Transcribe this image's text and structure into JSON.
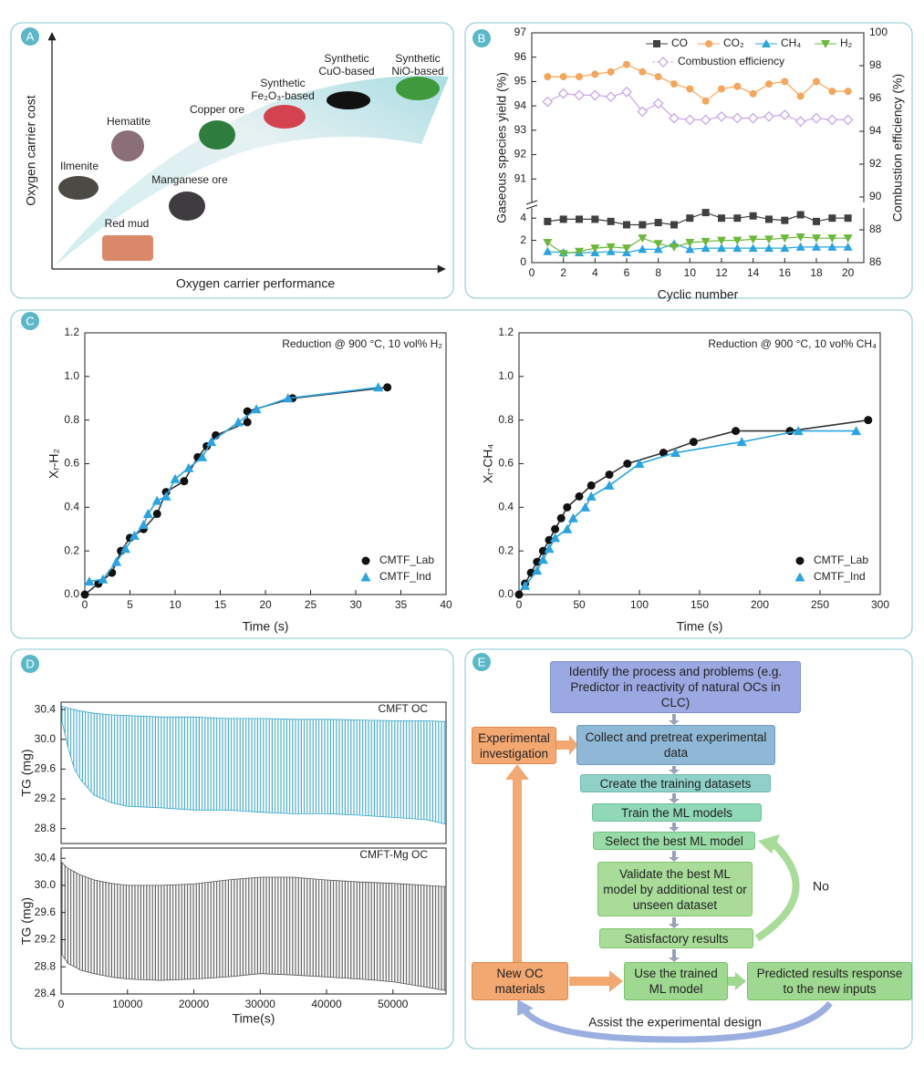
{
  "panel_labels": [
    "A",
    "B",
    "C",
    "D",
    "E"
  ],
  "panel_a": {
    "y_label": "Oxygen carrier cost",
    "x_label": "Oxygen carrier performance",
    "items": [
      [
        "Ilmenite"
      ],
      [
        "Hematite"
      ],
      [
        "Red mud"
      ],
      [
        "Manganese ore"
      ],
      [
        "Copper ore"
      ],
      [
        "Synthetic",
        "Fe₂O₃-based"
      ],
      [
        "Synthetic",
        "CuO-based"
      ],
      [
        "Synthetic",
        "NiO-based"
      ]
    ]
  },
  "chart_data": [
    {
      "type": "line",
      "xlabel": "Cyclic number",
      "ylabel": "Gaseous species yield (%)",
      "y2label": "Combustion efficiency (%)",
      "x": [
        1,
        2,
        3,
        4,
        5,
        6,
        7,
        8,
        9,
        10,
        11,
        12,
        13,
        14,
        15,
        16,
        17,
        18,
        19,
        20
      ],
      "xlim": [
        0,
        21
      ],
      "xticks": [
        0,
        2,
        4,
        6,
        8,
        10,
        12,
        14,
        16,
        18,
        20
      ],
      "ylim": [
        0,
        97
      ],
      "y_break": [
        5,
        90
      ],
      "yticks": [
        0,
        2,
        4,
        91,
        92,
        93,
        94,
        95,
        96,
        97
      ],
      "y2lim": [
        86,
        100
      ],
      "y2ticks": [
        86,
        88,
        90,
        92,
        94,
        96,
        98,
        100
      ],
      "series": [
        {
          "name": "CO",
          "color": "#404040",
          "marker": "square",
          "values": [
            3.7,
            3.9,
            3.9,
            3.9,
            3.7,
            3.4,
            3.4,
            3.6,
            3.4,
            4.0,
            4.5,
            4.0,
            4.0,
            4.2,
            3.9,
            3.8,
            4.3,
            3.7,
            4.0,
            4.0
          ]
        },
        {
          "name": "CO₂",
          "color": "#f5a65b",
          "marker": "circle",
          "values": [
            95.2,
            95.2,
            95.2,
            95.3,
            95.4,
            95.7,
            95.4,
            95.2,
            94.9,
            94.7,
            94.2,
            94.7,
            94.8,
            94.5,
            94.9,
            95.0,
            94.4,
            95.0,
            94.6,
            94.6
          ]
        },
        {
          "name": "CH₄",
          "color": "#2aa4e0",
          "marker": "triangle-up",
          "values": [
            1.0,
            0.9,
            0.9,
            0.9,
            1.0,
            0.9,
            1.2,
            1.2,
            1.7,
            1.2,
            1.3,
            1.3,
            1.3,
            1.3,
            1.3,
            1.3,
            1.4,
            1.4,
            1.4,
            1.4
          ]
        },
        {
          "name": "H₂",
          "color": "#6bb83a",
          "marker": "triangle-down",
          "values": [
            1.8,
            0.8,
            1.0,
            1.3,
            1.4,
            1.3,
            2.2,
            1.7,
            1.4,
            1.8,
            1.9,
            2.0,
            2.0,
            2.1,
            2.1,
            2.2,
            2.3,
            2.2,
            2.2,
            2.2
          ]
        },
        {
          "name": "Combustion efficiency",
          "color": "#c9a6e8",
          "marker": "diamond",
          "axis": "y2",
          "values": [
            95.8,
            96.3,
            96.2,
            96.2,
            96.1,
            96.4,
            95.2,
            95.7,
            94.8,
            94.7,
            94.7,
            94.9,
            94.8,
            94.8,
            94.9,
            95.0,
            94.6,
            94.8,
            94.7,
            94.7
          ]
        }
      ]
    },
    {
      "type": "scatter",
      "xlabel": "Time (s)",
      "ylabel": "Xᵣ-H₂",
      "annotation": "Reduction @ 900 °C, 10 vol% H₂",
      "xlim": [
        0,
        40
      ],
      "xticks": [
        0,
        5,
        10,
        15,
        20,
        25,
        30,
        35,
        40
      ],
      "ylim": [
        0,
        1.2
      ],
      "yticks": [
        {
          "value": 0,
          "label": "0.0"
        },
        0.2,
        0.4,
        0.6,
        0.8,
        {
          "value": 1,
          "label": "1.0"
        },
        1.2
      ],
      "legend": "lower right",
      "series": [
        {
          "name": "CMTF_Lab",
          "color": "#111111",
          "marker": "circle",
          "x": [
            0,
            1.5,
            3,
            4,
            5,
            6.5,
            8,
            9,
            11,
            12.5,
            13.5,
            14.5,
            18,
            18,
            23,
            33.5
          ],
          "values": [
            0,
            0.05,
            0.1,
            0.2,
            0.26,
            0.3,
            0.37,
            0.47,
            0.52,
            0.63,
            0.68,
            0.73,
            0.79,
            0.84,
            0.9,
            0.95
          ]
        },
        {
          "name": "CMTF_Ind",
          "color": "#2aa4e0",
          "marker": "triangle-up",
          "x": [
            0.5,
            2,
            3.5,
            4.5,
            5.5,
            6.5,
            7,
            8,
            9,
            10,
            11.5,
            13,
            14,
            17,
            19,
            22.5,
            32.5
          ],
          "values": [
            0.06,
            0.07,
            0.15,
            0.21,
            0.27,
            0.32,
            0.37,
            0.43,
            0.45,
            0.53,
            0.58,
            0.63,
            0.7,
            0.79,
            0.85,
            0.9,
            0.95
          ]
        }
      ]
    },
    {
      "type": "scatter",
      "xlabel": "Time (s)",
      "ylabel": "Xᵣ-CH₄",
      "annotation": "Reduction @ 900 °C, 10 vol% CH₄",
      "xlim": [
        0,
        300
      ],
      "xticks": [
        0,
        50,
        100,
        150,
        200,
        250,
        300
      ],
      "ylim": [
        0,
        1.2
      ],
      "yticks": [
        {
          "value": 0,
          "label": "0.0"
        },
        0.2,
        0.4,
        0.6,
        0.8,
        {
          "value": 1,
          "label": "1.0"
        },
        1.2
      ],
      "legend": "lower right",
      "series": [
        {
          "name": "CMTF_Lab",
          "color": "#111111",
          "marker": "circle",
          "x": [
            0,
            5,
            10,
            15,
            20,
            25,
            30,
            35,
            40,
            50,
            60,
            75,
            90,
            120,
            145,
            180,
            225,
            290
          ],
          "values": [
            0,
            0.05,
            0.1,
            0.15,
            0.2,
            0.25,
            0.3,
            0.35,
            0.4,
            0.45,
            0.5,
            0.55,
            0.6,
            0.65,
            0.7,
            0.75,
            0.75,
            0.8
          ]
        },
        {
          "name": "CMTF_Ind",
          "color": "#2aa4e0",
          "marker": "triangle-up",
          "x": [
            5,
            15,
            20,
            25,
            30,
            40,
            45,
            55,
            60,
            75,
            100,
            130,
            185,
            232,
            280
          ],
          "values": [
            0.04,
            0.11,
            0.16,
            0.21,
            0.26,
            0.3,
            0.35,
            0.4,
            0.45,
            0.5,
            0.6,
            0.65,
            0.7,
            0.75,
            0.75
          ]
        }
      ]
    },
    {
      "type": "band",
      "ylabel": "TG (mg)",
      "annotation": "CMFT OC",
      "color": "#3aa8c8",
      "xlim": [
        0,
        58000
      ],
      "ylim": [
        28.6,
        30.5
      ],
      "yticks": [
        28.8,
        29.2,
        29.6,
        {
          "value": 30,
          "label": "30.0"
        },
        30.4
      ],
      "x": [
        0,
        1000,
        2000,
        3000,
        5000,
        7500,
        10000,
        15000,
        20000,
        25000,
        30000,
        35000,
        40000,
        45000,
        50000,
        55000,
        58000
      ],
      "upper": [
        30.45,
        30.42,
        30.4,
        30.38,
        30.35,
        30.33,
        30.32,
        30.3,
        30.3,
        30.28,
        30.28,
        30.27,
        30.27,
        30.26,
        30.25,
        30.25,
        30.24
      ],
      "lower": [
        30.3,
        29.9,
        29.6,
        29.45,
        29.25,
        29.15,
        29.1,
        29.08,
        29.05,
        29.05,
        29.02,
        29.0,
        29.0,
        28.98,
        28.95,
        28.92,
        28.86
      ]
    },
    {
      "type": "band",
      "ylabel": "TG (mg)",
      "xlabel": "Time(s)",
      "annotation": "CMFT-Mg OC",
      "color": "#555555",
      "xlim": [
        0,
        58000
      ],
      "xticks": [
        0,
        10000,
        20000,
        30000,
        40000,
        50000
      ],
      "ylim": [
        28.4,
        30.55
      ],
      "yticks": [
        28.4,
        28.8,
        29.2,
        29.6,
        {
          "value": 30,
          "label": "30.0"
        },
        30.4
      ],
      "x": [
        0,
        1000,
        2000,
        3000,
        5000,
        7500,
        10000,
        15000,
        20000,
        25000,
        30000,
        35000,
        40000,
        45000,
        50000,
        55000,
        58000
      ],
      "upper": [
        30.35,
        30.25,
        30.2,
        30.15,
        30.08,
        30.03,
        30.0,
        30.0,
        30.02,
        30.08,
        30.12,
        30.12,
        30.08,
        30.05,
        30.03,
        30.0,
        29.98
      ],
      "lower": [
        29.0,
        28.85,
        28.8,
        28.75,
        28.7,
        28.65,
        28.62,
        28.6,
        28.62,
        28.65,
        28.7,
        28.68,
        28.65,
        28.62,
        28.58,
        28.5,
        28.45
      ]
    }
  ],
  "flowchart": {
    "nodes": [
      "Identify the process and problems (e.g. Predictor in reactivity of natural OCs in CLC)",
      "Collect and pretreat experimental data",
      "Create the training datasets",
      "Train the ML models",
      "Select the best ML model",
      "Validate the best ML model by additional test or unseen dataset",
      "Satisfactory results",
      "Use the trained ML model",
      "Predicted results response to the new inputs",
      "New OC materials",
      "Experimental investigation"
    ],
    "no_label": "No",
    "feedback_label": "Assist the experimental design"
  }
}
